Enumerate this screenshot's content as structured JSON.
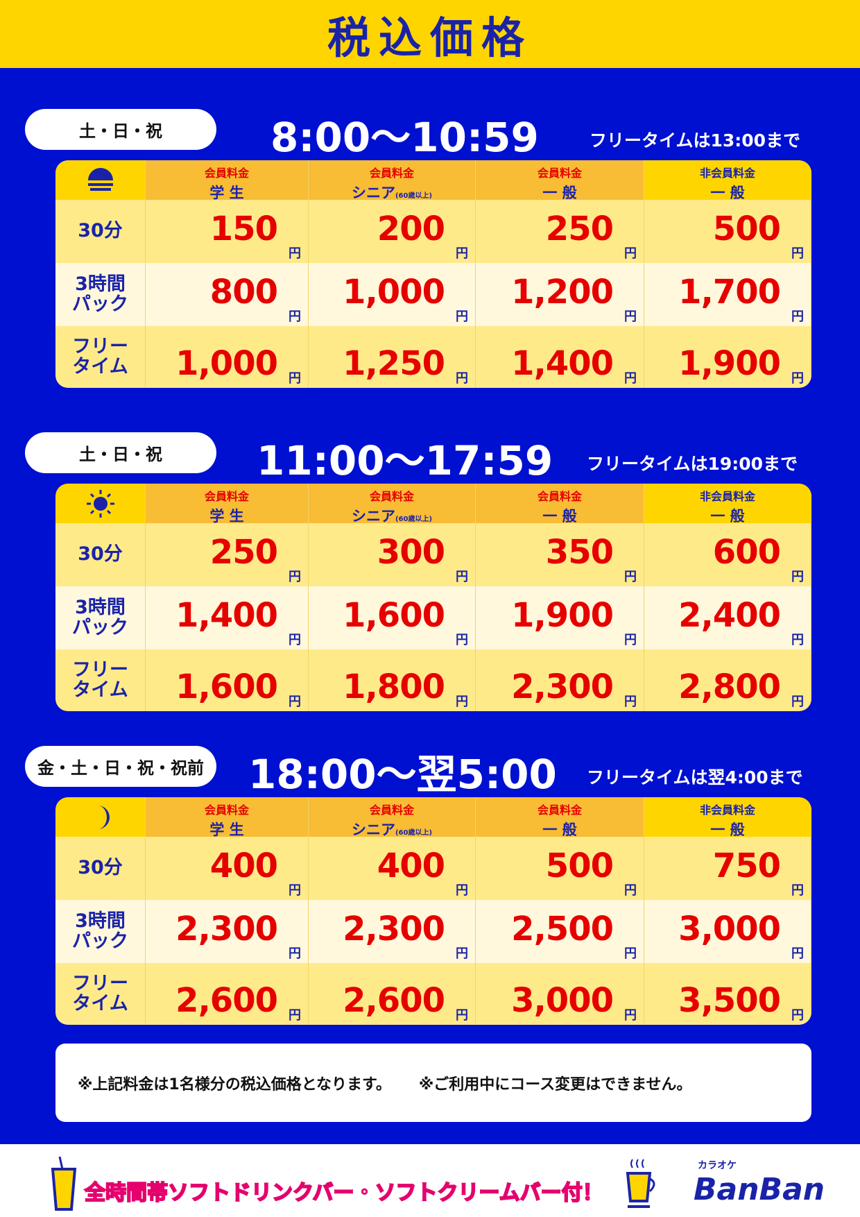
{
  "title": "税込価格",
  "colors": {
    "blue": "#0010d0",
    "yellow": "#ffd500",
    "orange": "#f8bc35",
    "red": "#e60000",
    "navy": "#1a23a8"
  },
  "columns": [
    {
      "type": "会員料金",
      "name": "学 生",
      "sub": ""
    },
    {
      "type": "会員料金",
      "name": "シニア",
      "sub": "(60歳以上)"
    },
    {
      "type": "会員料金",
      "name": "一 般",
      "sub": ""
    },
    {
      "type": "非会員料金",
      "name": "一 般",
      "sub": ""
    }
  ],
  "rows": [
    "30分",
    "3時間パック",
    "フリータイム"
  ],
  "yen": "円",
  "sections": [
    {
      "days": "土・日・祝",
      "time": "8:00〜10:59",
      "free": "フリータイムは13:00まで",
      "icon": "sunrise-icon",
      "prices": [
        [
          "150",
          "200",
          "250",
          "500"
        ],
        [
          "800",
          "1,000",
          "1,200",
          "1,700"
        ],
        [
          "1,000",
          "1,250",
          "1,400",
          "1,900"
        ]
      ]
    },
    {
      "days": "土・日・祝",
      "time": "11:00〜17:59",
      "free": "フリータイムは19:00まで",
      "icon": "sun-icon",
      "prices": [
        [
          "250",
          "300",
          "350",
          "600"
        ],
        [
          "1,400",
          "1,600",
          "1,900",
          "2,400"
        ],
        [
          "1,600",
          "1,800",
          "2,300",
          "2,800"
        ]
      ]
    },
    {
      "days": "金・土・日・祝・祝前",
      "time": "18:00〜翌5:00",
      "free": "フリータイムは翌4:00まで",
      "icon": "moon-icon",
      "prices": [
        [
          "400",
          "400",
          "500",
          "750"
        ],
        [
          "2,300",
          "2,300",
          "2,500",
          "3,000"
        ],
        [
          "2,600",
          "2,600",
          "3,000",
          "3,500"
        ]
      ]
    }
  ],
  "notes": [
    "※上記料金は1名様分の税込価格となります。",
    "※ご利用中にコース変更はできません。"
  ],
  "footer": {
    "promo": "全時間帯ソフトドリンクバー・ソフトクリームバー付！",
    "logo_kana": "カラオケ",
    "logo": "BanBan"
  }
}
